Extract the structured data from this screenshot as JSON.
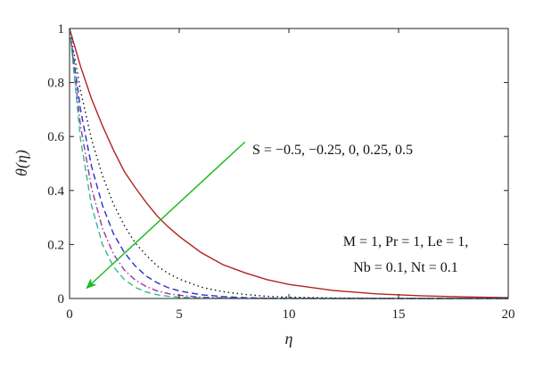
{
  "chart_data": {
    "type": "line",
    "xlabel": "η",
    "ylabel": "θ(η)",
    "xlim": [
      0,
      20
    ],
    "ylim": [
      0,
      1
    ],
    "x_ticks": [
      0,
      5,
      10,
      15,
      20
    ],
    "y_ticks": [
      0,
      0.2,
      0.4,
      0.6,
      0.8,
      1
    ],
    "y_tick_labels": [
      "0",
      "0.2",
      "0.4",
      "0.6",
      "0.8",
      "1"
    ],
    "grid": false,
    "x": [
      0,
      0.5,
      1,
      1.5,
      2,
      2.5,
      3,
      3.5,
      4,
      4.5,
      5,
      6,
      7,
      8,
      9,
      10,
      12,
      14,
      16,
      18,
      20
    ],
    "series": [
      {
        "color": "#b22222",
        "dash": "solid",
        "values": [
          1.0,
          0.86,
          0.74,
          0.64,
          0.55,
          0.47,
          0.41,
          0.355,
          0.305,
          0.265,
          0.23,
          0.17,
          0.125,
          0.095,
          0.07,
          0.052,
          0.03,
          0.017,
          0.01,
          0.006,
          0.003
        ]
      },
      {
        "color": "#111111",
        "dash": "dotted",
        "values": [
          1.0,
          0.77,
          0.59,
          0.455,
          0.35,
          0.27,
          0.205,
          0.16,
          0.12,
          0.093,
          0.072,
          0.042,
          0.025,
          0.015,
          0.008,
          0.005,
          0.002,
          0.001,
          0.0005,
          0.0002,
          0.0001
        ]
      },
      {
        "color": "#2233cc",
        "dash": "dashed",
        "values": [
          1.0,
          0.7,
          0.49,
          0.345,
          0.24,
          0.17,
          0.12,
          0.083,
          0.058,
          0.04,
          0.028,
          0.014,
          0.007,
          0.003,
          0.0015,
          0.0007,
          0.0002,
          0.0001,
          0,
          0,
          0
        ]
      },
      {
        "color": "#9933aa",
        "dash": "dashdot",
        "values": [
          1.0,
          0.64,
          0.41,
          0.26,
          0.165,
          0.105,
          0.068,
          0.044,
          0.028,
          0.018,
          0.012,
          0.005,
          0.002,
          0.001,
          0.0004,
          0.0002,
          0,
          0,
          0,
          0,
          0
        ]
      },
      {
        "color": "#33bb88",
        "dash": "dashed",
        "values": [
          1.0,
          0.59,
          0.345,
          0.2,
          0.118,
          0.07,
          0.041,
          0.024,
          0.014,
          0.008,
          0.005,
          0.0017,
          0.0006,
          0.0002,
          0,
          0,
          0,
          0,
          0,
          0,
          0
        ]
      }
    ],
    "annotation_arrow": {
      "label": "S = −0.5, −0.25, 0, 0.25, 0.5",
      "color": "#22bb22",
      "from": [
        8.0,
        0.58
      ],
      "to": [
        0.8,
        0.04
      ]
    },
    "parameters": {
      "line1": "M = 1, Pr = 1, Le = 1,",
      "line2": "Nb = 0.1, Nt = 0.1"
    }
  }
}
